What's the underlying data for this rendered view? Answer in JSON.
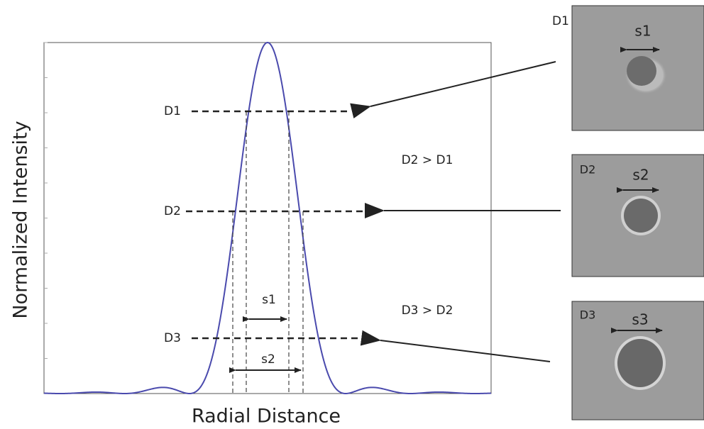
{
  "axes": {
    "x_label": "Radial Distance",
    "y_label": "Normalized Intensity"
  },
  "levels": [
    {
      "label": "D1"
    },
    {
      "label": "D2"
    },
    {
      "label": "D3"
    }
  ],
  "spans": [
    {
      "label": "s1"
    },
    {
      "label": "s2"
    }
  ],
  "comparisons": [
    "D2 > D1",
    "D3 > D2"
  ],
  "panels": [
    {
      "label": "D1",
      "span": "s1"
    },
    {
      "label": "D2",
      "span": "s2"
    },
    {
      "label": "D3",
      "span": "s3"
    }
  ]
}
